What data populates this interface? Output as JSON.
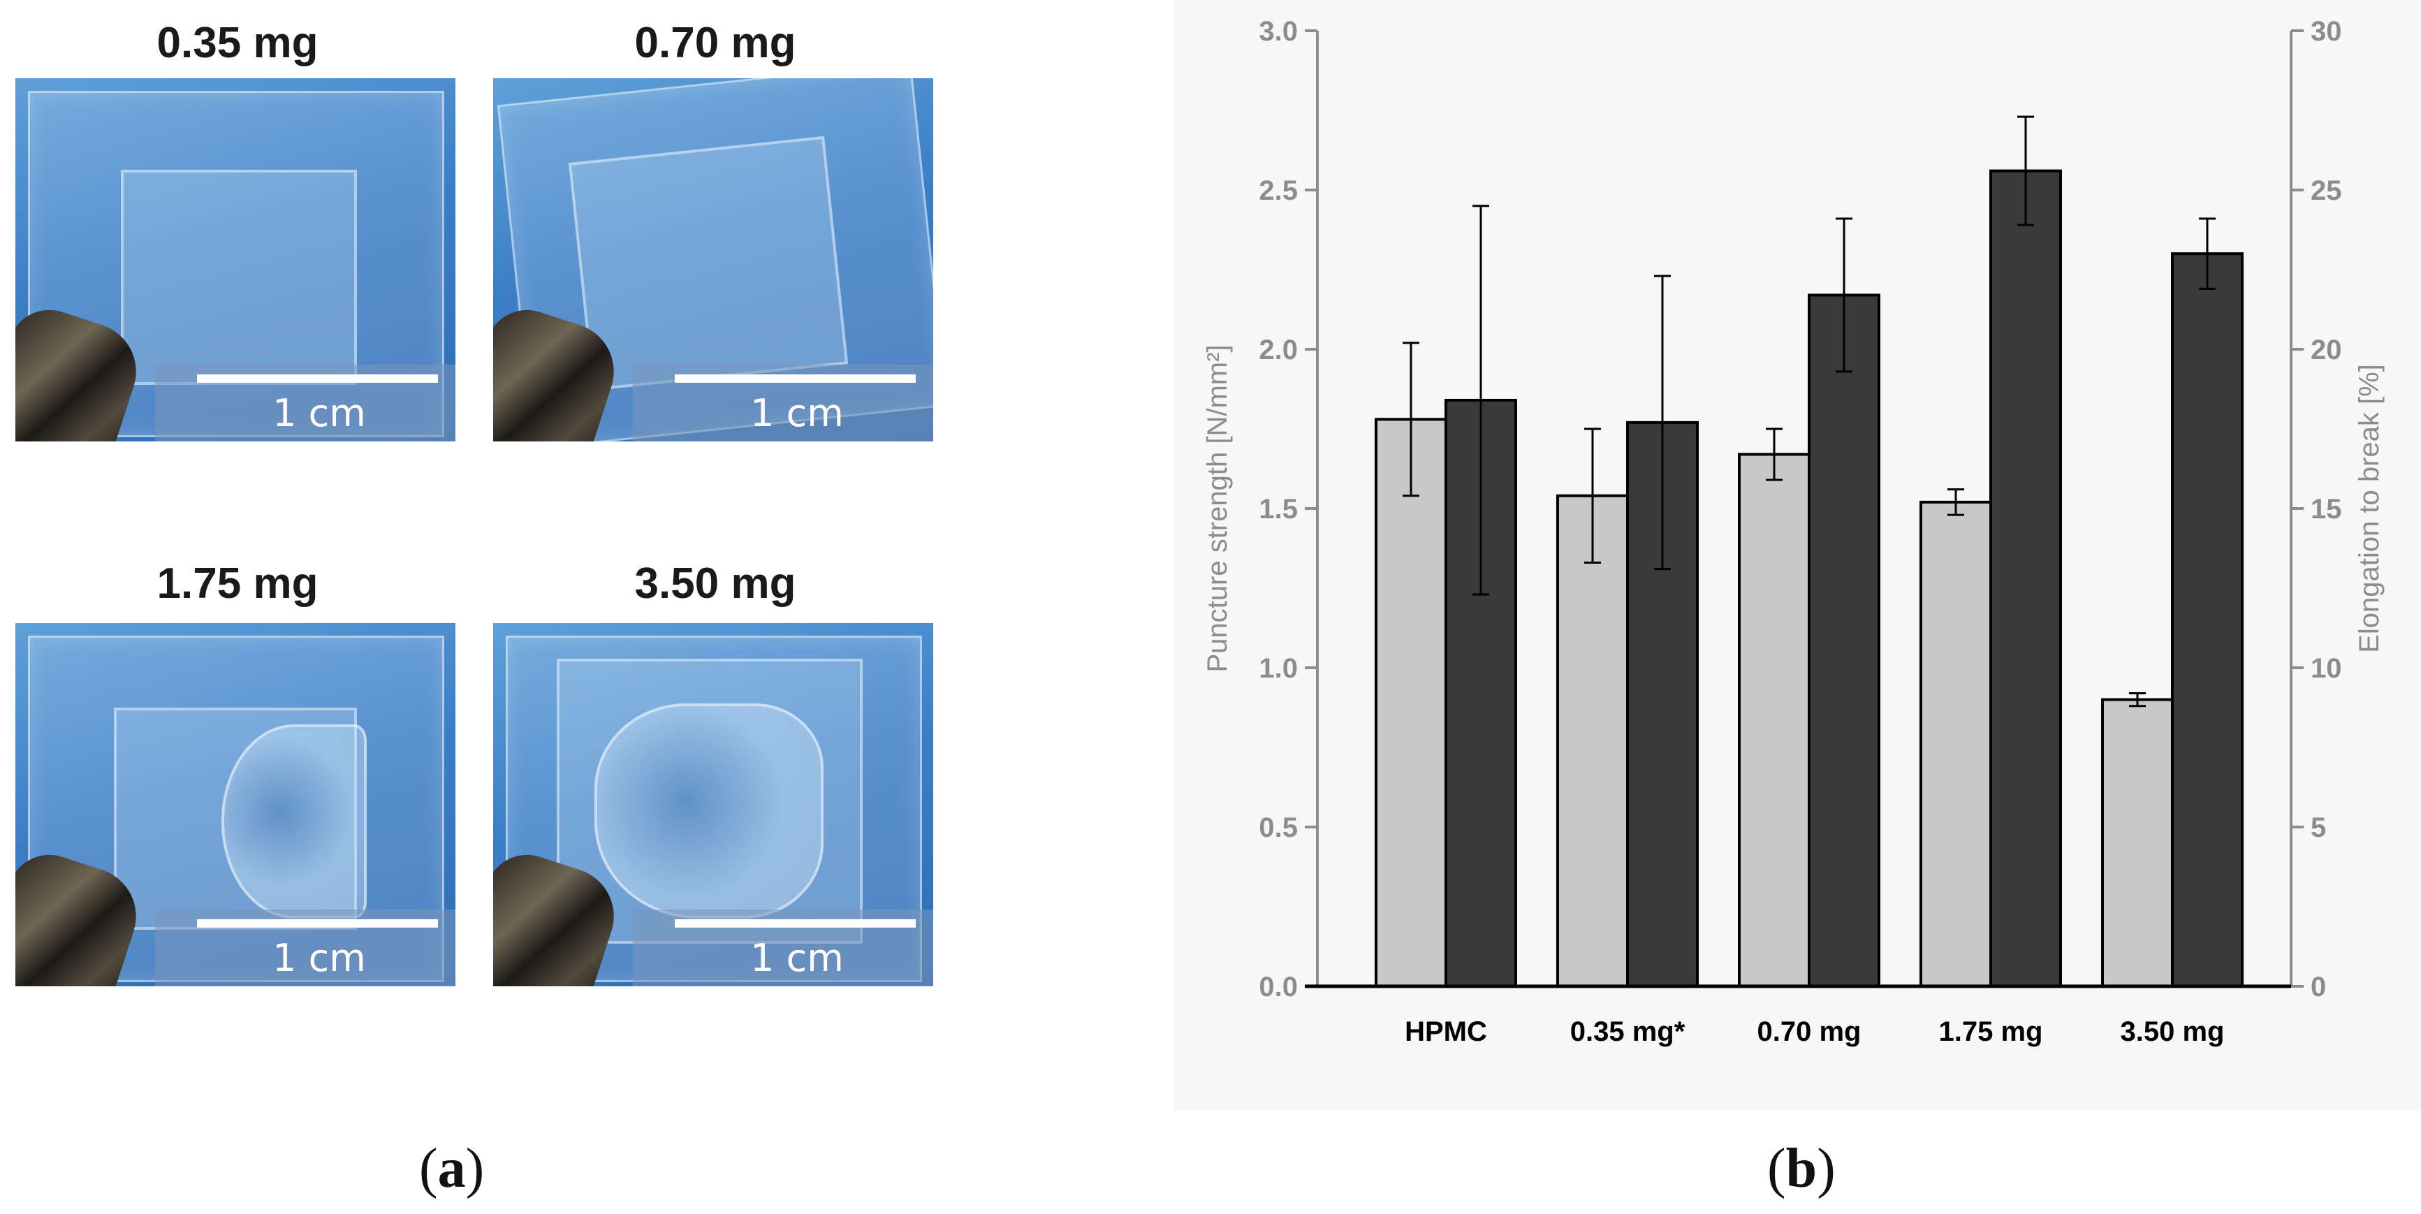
{
  "panel_a": {
    "photos": [
      {
        "label": "0.35 mg",
        "scale": "1 cm"
      },
      {
        "label": "0.70 mg",
        "scale": "1 cm"
      },
      {
        "label": "1.75 mg",
        "scale": "1 cm"
      },
      {
        "label": "3.50 mg",
        "scale": "1 cm"
      }
    ],
    "caption_letter": "a",
    "caption_open": "(",
    "caption_close": ")"
  },
  "panel_b": {
    "caption_letter": "b",
    "caption_open": "(",
    "caption_close": ")"
  },
  "chart_data": {
    "type": "bar",
    "categories": [
      "HPMC",
      "0.35 mg*",
      "0.70 mg",
      "1.75 mg",
      "3.50 mg"
    ],
    "series": [
      {
        "name": "Puncture strength",
        "axis": "left",
        "color": "#c8c8c8",
        "values": [
          1.78,
          1.54,
          1.67,
          1.52,
          0.9
        ],
        "errors": [
          0.24,
          0.21,
          0.08,
          0.04,
          0.02
        ]
      },
      {
        "name": "Elongation to break",
        "axis": "right",
        "color": "#3a3a3a",
        "values": [
          18.4,
          17.7,
          21.7,
          25.6,
          23.0
        ],
        "errors": [
          6.1,
          4.6,
          2.4,
          1.7,
          1.1
        ]
      }
    ],
    "ylabel_left": "Puncture strength [N/mm²]",
    "ylabel_right": "Elongation to break [%]",
    "ylim_left": [
      0,
      3.0
    ],
    "ylim_right": [
      0,
      30
    ],
    "yticks_left": [
      "0.0",
      "0.5",
      "1.0",
      "1.5",
      "2.0",
      "2.5",
      "3.0"
    ],
    "yticks_right": [
      "0",
      "5",
      "10",
      "15",
      "20",
      "25",
      "30"
    ],
    "grid": false,
    "legend": "none"
  }
}
